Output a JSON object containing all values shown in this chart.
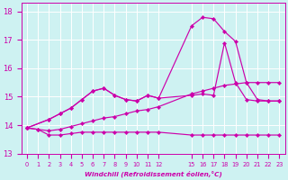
{
  "xlabel": "Windchill (Refroidissement éolien,°C)",
  "bg_color": "#cef2f2",
  "grid_color": "#ffffff",
  "line_color": "#cc00aa",
  "xlim": [
    -0.5,
    23.5
  ],
  "ylim": [
    13.0,
    18.3
  ],
  "yticks": [
    13,
    14,
    15,
    16,
    17,
    18
  ],
  "xtick_positions": [
    0,
    1,
    2,
    3,
    4,
    5,
    6,
    7,
    8,
    9,
    10,
    11,
    12,
    15,
    16,
    17,
    18,
    19,
    20,
    21,
    22,
    23
  ],
  "xtick_labels": [
    "0",
    "1",
    "2",
    "3",
    "4",
    "5",
    "6",
    "7",
    "8",
    "9",
    "10",
    "11",
    "12",
    "15",
    "16",
    "17",
    "18",
    "19",
    "20",
    "21",
    "22",
    "23"
  ],
  "series": [
    {
      "x": [
        0,
        1,
        2,
        3,
        4,
        5,
        6,
        7,
        8,
        9,
        10,
        11,
        12,
        15,
        16,
        17,
        18,
        19,
        20,
        21,
        22,
        23
      ],
      "y": [
        13.9,
        13.85,
        13.65,
        13.65,
        13.7,
        13.75,
        13.75,
        13.75,
        13.75,
        13.75,
        13.75,
        13.75,
        13.75,
        13.65,
        13.65,
        13.65,
        13.65,
        13.65,
        13.65,
        13.65,
        13.65,
        13.65
      ]
    },
    {
      "x": [
        0,
        1,
        2,
        3,
        4,
        5,
        6,
        7,
        8,
        9,
        10,
        11,
        12,
        15,
        16,
        17,
        18,
        19,
        20,
        21,
        22,
        23
      ],
      "y": [
        13.9,
        13.85,
        13.8,
        13.85,
        13.95,
        14.05,
        14.15,
        14.25,
        14.3,
        14.4,
        14.5,
        14.55,
        14.65,
        15.1,
        15.2,
        15.3,
        15.4,
        15.45,
        15.5,
        15.5,
        15.5,
        15.5
      ]
    },
    {
      "x": [
        0,
        2,
        3,
        4,
        5,
        6,
        7,
        8,
        9,
        10,
        11,
        12,
        15,
        16,
        17,
        18,
        19,
        20,
        21,
        22,
        23
      ],
      "y": [
        13.9,
        14.2,
        14.4,
        14.6,
        14.9,
        15.2,
        15.3,
        15.05,
        14.9,
        14.85,
        15.05,
        14.95,
        15.05,
        15.1,
        15.05,
        16.9,
        15.5,
        14.9,
        14.85,
        14.85,
        14.85
      ]
    },
    {
      "x": [
        0,
        2,
        3,
        4,
        5,
        6,
        7,
        8,
        9,
        10,
        11,
        12,
        15,
        16,
        17,
        18,
        19,
        20,
        21,
        22,
        23
      ],
      "y": [
        13.9,
        14.2,
        14.4,
        14.6,
        14.9,
        15.2,
        15.3,
        15.05,
        14.9,
        14.85,
        15.05,
        14.95,
        17.5,
        17.8,
        17.75,
        17.3,
        16.95,
        15.5,
        14.9,
        14.85,
        14.85
      ]
    }
  ]
}
